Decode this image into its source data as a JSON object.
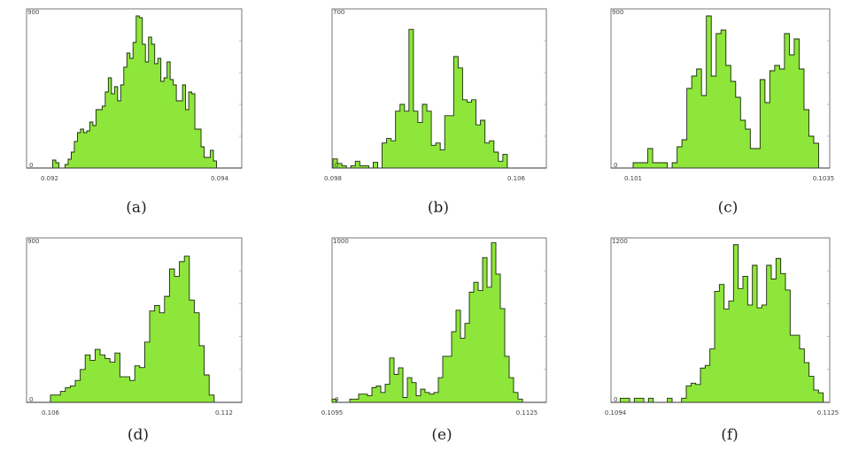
{
  "chart_data": [
    {
      "type": "bar",
      "caption": "(a)",
      "y_top_label": "900",
      "y_zero_label": "0",
      "x_min_label": "0.092",
      "x_max_label": "0.094",
      "ylim": [
        0,
        900
      ],
      "bar_color": "#8ee63a",
      "values": [
        0,
        45,
        30,
        0,
        0,
        20,
        50,
        90,
        150,
        200,
        220,
        200,
        210,
        260,
        240,
        330,
        330,
        350,
        430,
        510,
        420,
        460,
        380,
        470,
        570,
        650,
        620,
        710,
        860,
        850,
        700,
        600,
        740,
        700,
        590,
        620,
        490,
        510,
        600,
        500,
        470,
        380,
        380,
        470,
        330,
        430,
        420,
        220,
        220,
        120,
        60,
        60,
        100,
        40,
        0
      ]
    },
    {
      "type": "bar",
      "caption": "(b)",
      "y_top_label": "700",
      "y_zero_label": "0",
      "x_min_label": "0.098",
      "x_max_label": "0.106",
      "ylim": [
        0,
        700
      ],
      "bar_color": "#8ee63a",
      "values": [
        40,
        20,
        10,
        0,
        10,
        30,
        10,
        10,
        0,
        25,
        0,
        110,
        130,
        120,
        250,
        280,
        250,
        610,
        250,
        200,
        280,
        250,
        100,
        110,
        80,
        230,
        230,
        490,
        440,
        300,
        290,
        300,
        190,
        210,
        110,
        120,
        70,
        30,
        60,
        0,
        0
      ]
    },
    {
      "type": "bar",
      "caption": "(c)",
      "y_top_label": "900",
      "y_zero_label": "0",
      "x_min_label": "0.101",
      "x_max_label": "0.1035",
      "ylim": [
        0,
        900
      ],
      "bar_color": "#8ee63a",
      "values": [
        30,
        30,
        30,
        110,
        30,
        30,
        30,
        0,
        30,
        120,
        160,
        450,
        520,
        560,
        410,
        860,
        520,
        760,
        780,
        580,
        490,
        400,
        270,
        220,
        110,
        110,
        500,
        370,
        550,
        580,
        560,
        760,
        640,
        730,
        560,
        330,
        180,
        140,
        0
      ]
    },
    {
      "type": "bar",
      "caption": "(d)",
      "y_top_label": "900",
      "y_zero_label": "0",
      "x_min_label": "0.106",
      "x_max_label": "0.112",
      "ylim": [
        0,
        900
      ],
      "bar_color": "#8ee63a",
      "values": [
        40,
        40,
        60,
        80,
        90,
        120,
        180,
        260,
        230,
        290,
        260,
        240,
        220,
        270,
        140,
        140,
        120,
        200,
        190,
        330,
        500,
        530,
        490,
        580,
        730,
        690,
        770,
        800,
        560,
        490,
        310,
        150,
        40,
        0,
        0
      ]
    },
    {
      "type": "bar",
      "caption": "(e)",
      "y_top_label": "1000",
      "y_zero_label": "0",
      "x_min_label": "0.1095",
      "x_max_label": "0.1125",
      "ylim": [
        0,
        1000
      ],
      "bar_color": "#8ee63a",
      "values": [
        20,
        0,
        0,
        0,
        20,
        20,
        50,
        50,
        40,
        90,
        100,
        60,
        110,
        270,
        170,
        210,
        30,
        150,
        120,
        40,
        80,
        60,
        50,
        60,
        150,
        280,
        280,
        430,
        560,
        390,
        480,
        670,
        730,
        680,
        880,
        700,
        970,
        780,
        570,
        280,
        150,
        60,
        20,
        0
      ]
    },
    {
      "type": "bar",
      "caption": "(f)",
      "y_top_label": "1200",
      "y_zero_label": "0",
      "x_min_label": "0.1094",
      "x_max_label": "0.1125",
      "ylim": [
        0,
        1200
      ],
      "bar_color": "#8ee63a",
      "values": [
        0,
        30,
        30,
        0,
        30,
        30,
        0,
        30,
        0,
        0,
        0,
        30,
        0,
        0,
        30,
        120,
        140,
        130,
        250,
        270,
        390,
        810,
        860,
        680,
        740,
        1150,
        830,
        920,
        710,
        1000,
        690,
        710,
        1000,
        900,
        1050,
        940,
        820,
        490,
        490,
        390,
        290,
        190,
        90,
        70,
        0
      ]
    }
  ]
}
